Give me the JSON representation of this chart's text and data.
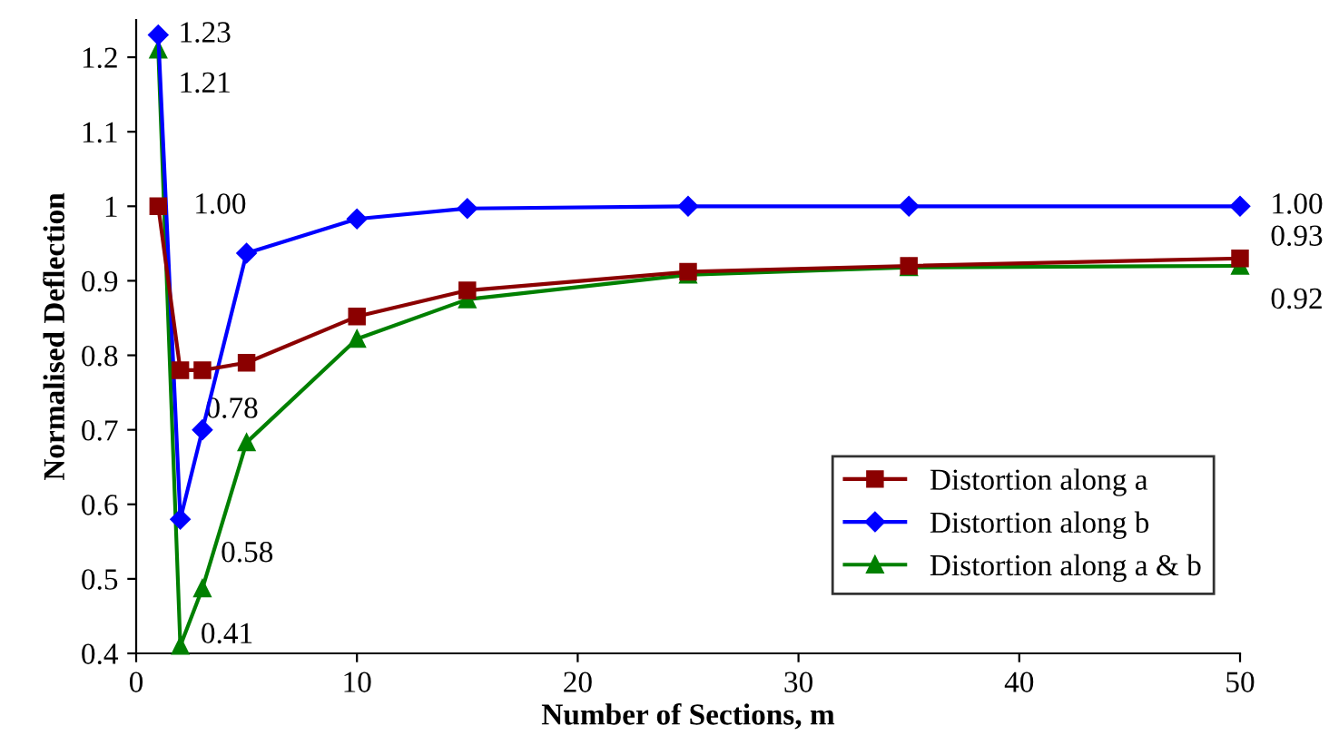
{
  "chart_data": {
    "type": "line",
    "xlabel": "Number of Sections, m",
    "ylabel": "Normalised Deflection",
    "xlim": [
      0,
      50
    ],
    "xticks": [
      0,
      10,
      20,
      30,
      40,
      50
    ],
    "ylim": [
      0.4,
      1.25
    ],
    "yticks": [
      0.4,
      0.5,
      0.6,
      0.7,
      0.8,
      0.9,
      1,
      1.1,
      1.2
    ],
    "legend": "bottom right",
    "grid": false,
    "line_style": "solid",
    "x": [
      1,
      2,
      3,
      5,
      10,
      15,
      25,
      35,
      50
    ],
    "series": [
      {
        "name": "Distortion along a",
        "color": "#8b0000",
        "marker": "square",
        "values": [
          1.0,
          0.78,
          0.78,
          0.79,
          0.852,
          0.887,
          0.912,
          0.92,
          0.93
        ],
        "value_labels": [
          "1.00",
          "0.78",
          null,
          null,
          null,
          null,
          null,
          null,
          "0.93"
        ]
      },
      {
        "name": "Distortion along b",
        "color": "#0000ff",
        "marker": "diamond",
        "values": [
          1.23,
          0.58,
          0.7,
          0.937,
          0.983,
          0.997,
          1.0,
          1.0,
          1.0
        ],
        "value_labels": [
          "1.23",
          "0.58",
          null,
          null,
          null,
          null,
          null,
          null,
          "1.00"
        ]
      },
      {
        "name": "Distortion along a & b",
        "color": "#008000",
        "marker": "triangle",
        "values": [
          1.21,
          0.41,
          0.487,
          0.683,
          0.822,
          0.875,
          0.908,
          0.918,
          0.92
        ],
        "value_labels": [
          "1.21",
          "0.41",
          null,
          null,
          null,
          null,
          null,
          null,
          "0.92"
        ]
      }
    ]
  }
}
